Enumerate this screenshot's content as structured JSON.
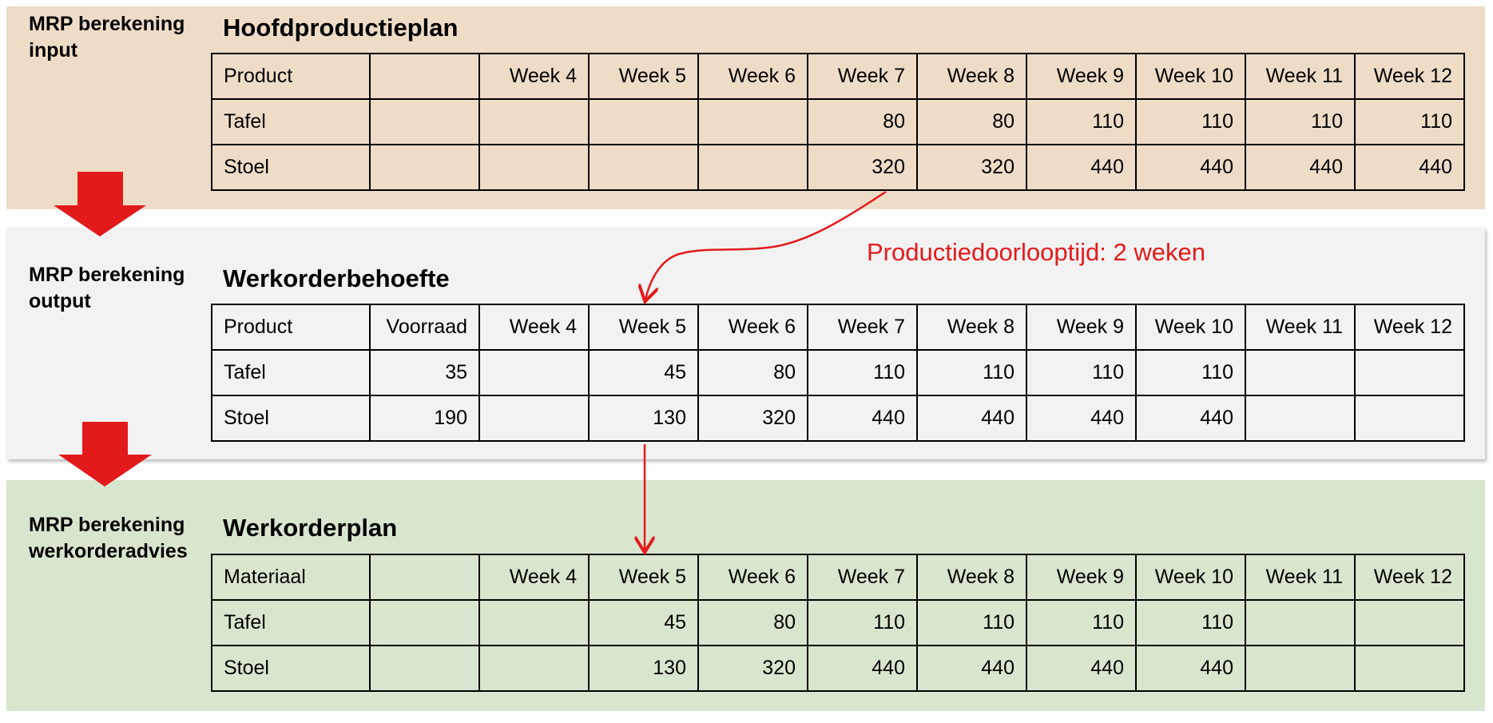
{
  "colors": {
    "input_band": "#efdcc7",
    "output_band": "#f2f2f2",
    "plan_band": "#d9e6cf",
    "arrow_red": "#e31a1c"
  },
  "sections": [
    {
      "side_label": [
        "MRP berekening",
        "input"
      ],
      "title": "Hoofdproductieplan",
      "header": [
        "Product",
        "",
        "Week 4",
        "Week 5",
        "Week 6",
        "Week 7",
        "Week 8",
        "Week 9",
        "Week 10",
        "Week 11",
        "Week 12"
      ],
      "rows": [
        [
          "Tafel",
          "",
          "",
          "",
          "",
          "80",
          "80",
          "110",
          "110",
          "110",
          "110"
        ],
        [
          "Stoel",
          "",
          "",
          "",
          "",
          "320",
          "320",
          "440",
          "440",
          "440",
          "440"
        ]
      ]
    },
    {
      "side_label": [
        "MRP berekening",
        "output"
      ],
      "title": "Werkorderbehoefte",
      "header": [
        "Product",
        "Voorraad",
        "Week 4",
        "Week 5",
        "Week 6",
        "Week 7",
        "Week 8",
        "Week 9",
        "Week 10",
        "Week 11",
        "Week 12"
      ],
      "rows": [
        [
          "Tafel",
          "35",
          "",
          "45",
          "80",
          "110",
          "110",
          "110",
          "110",
          "",
          ""
        ],
        [
          "Stoel",
          "190",
          "",
          "130",
          "320",
          "440",
          "440",
          "440",
          "440",
          "",
          ""
        ]
      ]
    },
    {
      "side_label": [
        "MRP berekening",
        "werkorderadvies"
      ],
      "title": "Werkorderplan",
      "header": [
        "Materiaal",
        "",
        "Week 4",
        "Week 5",
        "Week 6",
        "Week 7",
        "Week 8",
        "Week 9",
        "Week 10",
        "Week 11",
        "Week 12"
      ],
      "rows": [
        [
          "Tafel",
          "",
          "",
          "45",
          "80",
          "110",
          "110",
          "110",
          "110",
          "",
          ""
        ],
        [
          "Stoel",
          "",
          "",
          "130",
          "320",
          "440",
          "440",
          "440",
          "440",
          "",
          ""
        ]
      ]
    }
  ],
  "annotation": "Productiedoorlooptijd: 2 weken"
}
